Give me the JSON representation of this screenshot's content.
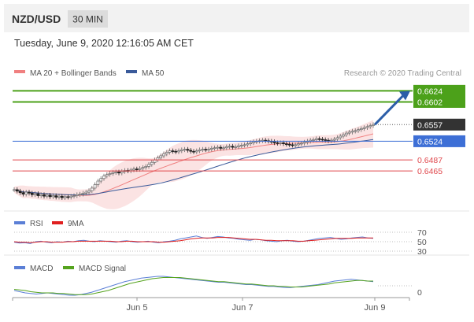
{
  "header": {
    "pair": "NZD/USD",
    "timeframe": "30 MIN",
    "datetime": "Tuesday, June 9, 2020 12:16:05 AM CET"
  },
  "legend": {
    "ma20_label": "MA 20 + Bollinger Bands",
    "ma50_label": "MA 50",
    "credit": "Research © 2020 Trading Central"
  },
  "colors": {
    "up_target": "#4ca11a",
    "price": "#333333",
    "pivot": "#3d6fd6",
    "support": "#e0474c",
    "ma20": "#f08080",
    "ma50": "#3a5a9a",
    "bollinger": "#fbe3e3",
    "arrow": "#2c5ea8",
    "rsi": "#5b7fd6",
    "rsi_ma": "#e02020",
    "macd": "#5b7fd6",
    "macd_signal": "#55a31e"
  },
  "chart_data": [
    {
      "type": "candlestick",
      "title": "NZD/USD",
      "ylim": [
        0.6395,
        0.6648
      ],
      "x_ticks": [
        "Jun 5",
        "Jun 7",
        "Jun 9"
      ],
      "close": [
        0.6428,
        0.6425,
        0.6422,
        0.6419,
        0.6423,
        0.6421,
        0.6418,
        0.642,
        0.6416,
        0.6418,
        0.6415,
        0.6417,
        0.6414,
        0.6416,
        0.6413,
        0.6415,
        0.6412,
        0.6414,
        0.6413,
        0.6415,
        0.6416,
        0.6418,
        0.6419,
        0.6421,
        0.6423,
        0.6426,
        0.6431,
        0.6438,
        0.6445,
        0.645,
        0.6455,
        0.6458,
        0.646,
        0.6462,
        0.6463,
        0.6461,
        0.6464,
        0.6466,
        0.6465,
        0.6467,
        0.6469,
        0.6468,
        0.647,
        0.6472,
        0.6474,
        0.6478,
        0.6482,
        0.6487,
        0.6491,
        0.6495,
        0.6499,
        0.6502,
        0.6505,
        0.6504,
        0.6503,
        0.6505,
        0.6507,
        0.6508,
        0.6506,
        0.6504,
        0.6503,
        0.6505,
        0.6507,
        0.6508,
        0.6507,
        0.6508,
        0.651,
        0.6511,
        0.6512,
        0.651,
        0.6511,
        0.6513,
        0.6514,
        0.6512,
        0.6513,
        0.6515,
        0.6516,
        0.6517,
        0.6519,
        0.6521,
        0.6523,
        0.6524,
        0.6525,
        0.6526,
        0.6525,
        0.6524,
        0.6523,
        0.6521,
        0.652,
        0.6521,
        0.6519,
        0.6518,
        0.6517,
        0.6516,
        0.6517,
        0.6519,
        0.652,
        0.6522,
        0.6524,
        0.6526,
        0.6527,
        0.6529,
        0.6528,
        0.6527,
        0.6526,
        0.6525,
        0.6526,
        0.6528,
        0.6531,
        0.6534,
        0.6537,
        0.654,
        0.6542,
        0.6544,
        0.6545,
        0.6547,
        0.6549,
        0.6551,
        0.6553,
        0.6555,
        0.6557
      ],
      "levels": [
        {
          "label": "0.6624",
          "value": 0.6624,
          "role": "resistance 2"
        },
        {
          "label": "0.6602",
          "value": 0.6602,
          "role": "resistance 1"
        },
        {
          "label": "0.6557",
          "value": 0.6557,
          "role": "last price"
        },
        {
          "label": "0.6524",
          "value": 0.6524,
          "role": "pivot"
        },
        {
          "label": "0.6487",
          "value": 0.6487,
          "role": "support 1"
        },
        {
          "label": "0.6465",
          "value": 0.6465,
          "role": "support 2"
        }
      ]
    },
    {
      "type": "line",
      "title": "RSI",
      "series": [
        {
          "name": "RSI",
          "values": [
            49,
            47,
            48,
            46,
            50,
            51,
            49,
            48,
            50,
            49,
            51,
            50,
            52,
            53,
            51,
            50,
            52,
            51,
            50,
            49,
            51,
            52,
            50,
            49,
            50,
            51,
            49,
            48,
            50,
            51,
            53,
            56,
            58,
            60,
            62,
            59,
            57,
            59,
            61,
            60,
            58,
            57,
            55,
            54,
            53,
            55,
            54,
            52,
            51,
            50,
            52,
            53,
            51,
            50,
            51,
            53,
            55,
            57,
            58,
            59,
            57,
            55,
            56,
            58,
            59,
            60,
            58,
            57
          ]
        },
        {
          "name": "9MA",
          "values": [
            50,
            49,
            49,
            48,
            49,
            50,
            50,
            49,
            49,
            49,
            50,
            50,
            51,
            51,
            51,
            51,
            51,
            51,
            51,
            50,
            50,
            51,
            51,
            50,
            50,
            50,
            50,
            49,
            49,
            50,
            51,
            52,
            54,
            56,
            57,
            58,
            58,
            58,
            59,
            59,
            59,
            58,
            57,
            56,
            55,
            55,
            54,
            53,
            53,
            52,
            52,
            52,
            52,
            51,
            51,
            52,
            53,
            54,
            55,
            56,
            57,
            57,
            57,
            57,
            58,
            58,
            58,
            58
          ]
        }
      ],
      "y_ticks": [
        70,
        50,
        30
      ],
      "ylim": [
        25,
        75
      ]
    },
    {
      "type": "line",
      "title": "MACD",
      "series": [
        {
          "name": "MACD",
          "values": [
            -8,
            -10,
            -12,
            -13,
            -14,
            -13,
            -12,
            -13,
            -14,
            -15,
            -16,
            -16,
            -15,
            -13,
            -11,
            -8,
            -5,
            -2,
            1,
            4,
            7,
            9,
            11,
            13,
            14,
            15,
            16,
            16,
            15,
            14,
            13,
            12,
            11,
            10,
            9,
            8,
            7,
            6,
            6,
            5,
            4,
            3,
            2,
            2,
            1,
            0,
            -1,
            -1,
            -2,
            -3,
            -3,
            -2,
            -1,
            0,
            1,
            2,
            4,
            6,
            8,
            9,
            10,
            11,
            10,
            9,
            8,
            7
          ]
        },
        {
          "name": "MACD Signal",
          "values": [
            -6,
            -7,
            -8,
            -10,
            -11,
            -12,
            -12,
            -12,
            -13,
            -13,
            -14,
            -15,
            -15,
            -15,
            -14,
            -12,
            -10,
            -8,
            -5,
            -2,
            1,
            4,
            6,
            8,
            10,
            12,
            13,
            14,
            14,
            14,
            14,
            13,
            12,
            11,
            10,
            9,
            8,
            7,
            7,
            6,
            5,
            4,
            3,
            3,
            2,
            1,
            0,
            0,
            -1,
            -1,
            -2,
            -2,
            -2,
            -1,
            0,
            1,
            2,
            3,
            5,
            6,
            7,
            8,
            9,
            9,
            8,
            8
          ]
        }
      ],
      "y_ticks": [
        0
      ],
      "ylim": [
        -20,
        20
      ]
    }
  ]
}
